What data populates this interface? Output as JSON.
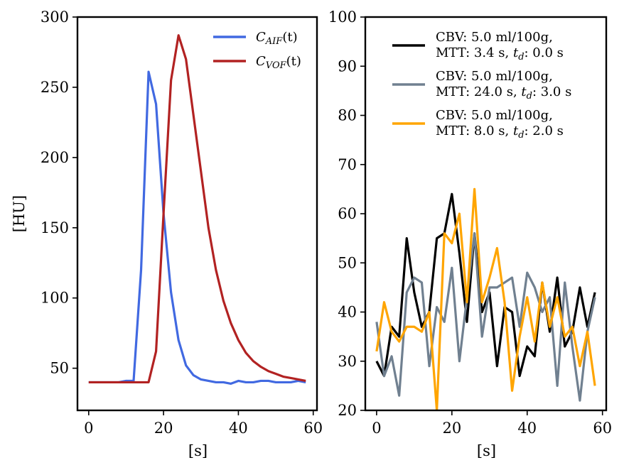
{
  "chart_data": [
    {
      "type": "line",
      "title": "",
      "xlabel": "[s]",
      "ylabel": "[HU]",
      "xlim": [
        -3,
        61
      ],
      "ylim": [
        20,
        300
      ],
      "xticks": [
        0,
        20,
        40,
        60
      ],
      "yticks": [
        50,
        100,
        150,
        200,
        250,
        300
      ],
      "legend_placement": "top-right",
      "grid": false,
      "series": [
        {
          "name": "C_AIF(t)",
          "legend_base": "C",
          "legend_sub": "AIF",
          "legend_tail": "(t)",
          "color": "#4169e1",
          "x": [
            0,
            2,
            4,
            6,
            8,
            10,
            12,
            14,
            16,
            18,
            20,
            22,
            24,
            26,
            28,
            30,
            32,
            34,
            36,
            38,
            40,
            42,
            44,
            46,
            48,
            50,
            52,
            54,
            56,
            58
          ],
          "y": [
            40,
            40,
            40,
            40,
            40,
            41,
            41,
            120,
            261,
            238,
            160,
            104,
            70,
            52,
            45,
            42,
            41,
            40,
            40,
            39,
            41,
            40,
            40,
            41,
            41,
            40,
            40,
            40,
            41,
            40
          ]
        },
        {
          "name": "C_VOF(t)",
          "legend_base": "C",
          "legend_sub": "VOF",
          "legend_tail": "(t)",
          "color": "#b22222",
          "x": [
            0,
            2,
            4,
            6,
            8,
            10,
            12,
            14,
            16,
            18,
            20,
            22,
            24,
            26,
            28,
            30,
            32,
            34,
            36,
            38,
            40,
            42,
            44,
            46,
            48,
            50,
            52,
            54,
            56,
            58
          ],
          "y": [
            40,
            40,
            40,
            40,
            40,
            40,
            40,
            40,
            40,
            62,
            160,
            255,
            287,
            270,
            230,
            190,
            150,
            120,
            98,
            82,
            70,
            61,
            55,
            51,
            48,
            46,
            44,
            43,
            42,
            41
          ]
        }
      ]
    },
    {
      "type": "line",
      "title": "",
      "xlabel": "[s]",
      "ylabel": "",
      "xlim": [
        -3,
        61
      ],
      "ylim": [
        20,
        100
      ],
      "xticks": [
        0,
        20,
        40,
        60
      ],
      "yticks": [
        20,
        30,
        40,
        50,
        60,
        70,
        80,
        90,
        100
      ],
      "legend_placement": "top-right",
      "grid": false,
      "series": [
        {
          "legend_line1": "CBV: 5.0 ml/100g,",
          "legend_line2_prefix": "MTT: 3.4 s, ",
          "legend_td": "t",
          "legend_td_sub": "d",
          "legend_line2_suffix": ": 0.0 s",
          "color": "#000000",
          "x": [
            0,
            2,
            4,
            6,
            8,
            10,
            12,
            14,
            16,
            18,
            20,
            22,
            24,
            26,
            28,
            30,
            32,
            34,
            36,
            38,
            40,
            42,
            44,
            46,
            48,
            50,
            52,
            54,
            56,
            58
          ],
          "y": [
            30,
            27,
            37,
            35,
            55,
            44,
            37,
            40,
            55,
            56,
            64,
            52,
            38,
            56,
            40,
            44,
            29,
            41,
            40,
            27,
            33,
            31,
            46,
            36,
            47,
            33,
            36,
            45,
            37,
            44
          ]
        },
        {
          "legend_line1": "CBV: 5.0 ml/100g,",
          "legend_line2_prefix": "MTT: 24.0 s, ",
          "legend_td": "t",
          "legend_td_sub": "d",
          "legend_line2_suffix": ": 3.0 s",
          "color": "#708090",
          "x": [
            0,
            2,
            4,
            6,
            8,
            10,
            12,
            14,
            16,
            18,
            20,
            22,
            24,
            26,
            28,
            30,
            32,
            34,
            36,
            38,
            40,
            42,
            44,
            46,
            48,
            50,
            52,
            54,
            56,
            58
          ],
          "y": [
            38,
            27,
            31,
            23,
            44,
            47,
            46,
            29,
            41,
            38,
            49,
            30,
            43,
            56,
            35,
            45,
            45,
            46,
            47,
            37,
            48,
            45,
            40,
            43,
            25,
            46,
            33,
            22,
            36,
            43
          ]
        },
        {
          "legend_line1": "CBV: 5.0 ml/100g,",
          "legend_line2_prefix": "MTT: 8.0 s, ",
          "legend_td": "t",
          "legend_td_sub": "d",
          "legend_line2_suffix": ": 2.0 s",
          "color": "#ffa500",
          "x": [
            0,
            2,
            4,
            6,
            8,
            10,
            12,
            14,
            16,
            18,
            20,
            22,
            24,
            26,
            28,
            30,
            32,
            34,
            36,
            38,
            40,
            42,
            44,
            46,
            48,
            50,
            52,
            54,
            56,
            58
          ],
          "y": [
            32,
            42,
            36,
            34,
            37,
            37,
            36,
            40,
            20,
            56,
            54,
            60,
            42,
            65,
            42,
            47,
            53,
            42,
            24,
            35,
            43,
            34,
            46,
            37,
            43,
            35,
            37,
            29,
            36,
            25
          ]
        }
      ]
    }
  ]
}
